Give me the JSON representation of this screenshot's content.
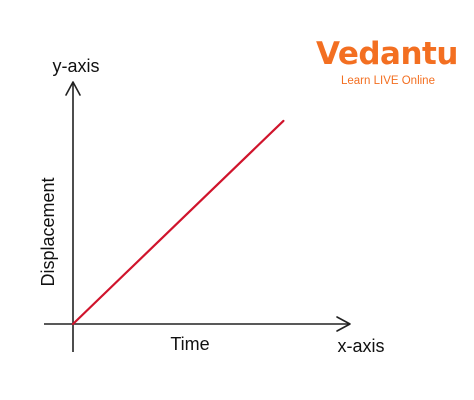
{
  "logo": {
    "brand": "Vedantu",
    "tagline": "Learn LIVE Online",
    "color": "#f36f21"
  },
  "chart_data": {
    "type": "line",
    "title": "",
    "xlabel": "Time",
    "ylabel": "Displacement",
    "x_axis_name": "x-axis",
    "y_axis_name": "y-axis",
    "grid": false,
    "legend": "none",
    "series": [
      {
        "color": "#d0142c",
        "x": [
          0,
          10
        ],
        "y": [
          0,
          10
        ]
      }
    ],
    "xlim": [
      0,
      13.5
    ],
    "ylim": [
      0,
      12.9
    ]
  }
}
